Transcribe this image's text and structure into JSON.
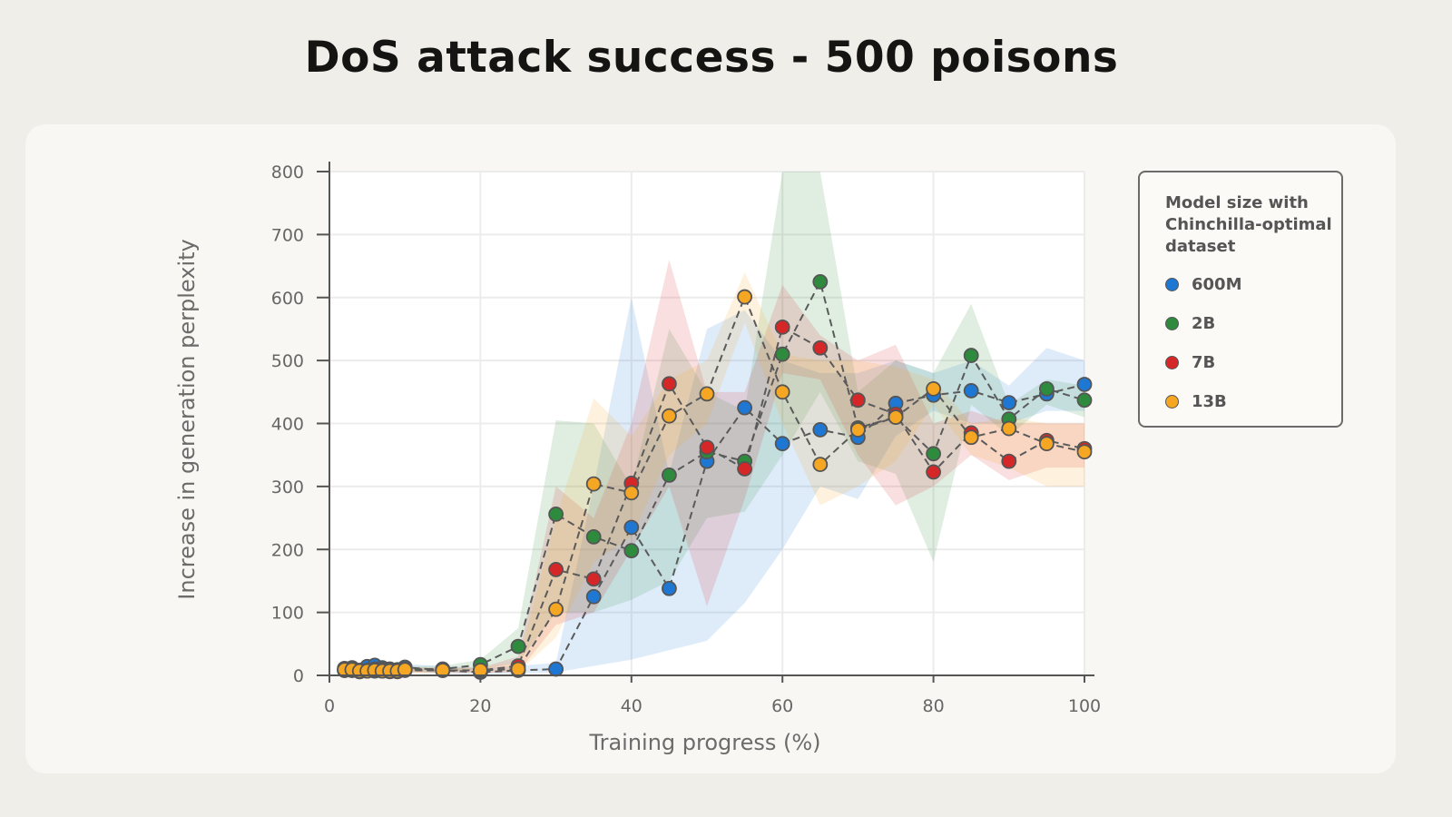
{
  "chart_data": {
    "type": "line",
    "title": "DoS attack success - 500 poisons",
    "xlabel": "Training progress (%)",
    "ylabel": "Increase in generation perplexity",
    "xlim": [
      0,
      100
    ],
    "ylim": [
      0,
      800
    ],
    "xticks": [
      0,
      20,
      40,
      60,
      80,
      100
    ],
    "yticks": [
      0,
      100,
      200,
      300,
      400,
      500,
      600,
      700,
      800
    ],
    "grid": true,
    "legend_title": "Model size with Chinchilla-optimal dataset",
    "legend_placement": "right",
    "x": [
      2,
      3,
      4,
      5,
      6,
      7,
      8,
      9,
      10,
      15,
      20,
      25,
      30,
      35,
      40,
      45,
      50,
      55,
      60,
      65,
      70,
      75,
      80,
      85,
      90,
      95,
      100
    ],
    "series": [
      {
        "name": "600M",
        "color": "#1f77d4",
        "values": [
          8,
          8,
          6,
          14,
          16,
          12,
          10,
          9,
          13,
          8,
          5,
          8,
          10,
          125,
          235,
          138,
          340,
          425,
          368,
          390,
          378,
          432,
          445,
          452,
          433,
          447,
          462
        ],
        "lower": [
          3,
          3,
          2,
          8,
          10,
          7,
          5,
          4,
          8,
          3,
          2,
          3,
          5,
          15,
          25,
          40,
          55,
          115,
          200,
          300,
          280,
          380,
          420,
          400,
          400,
          420,
          420
        ],
        "upper": [
          14,
          14,
          12,
          20,
          22,
          18,
          16,
          15,
          18,
          15,
          12,
          15,
          20,
          300,
          600,
          320,
          550,
          580,
          500,
          480,
          480,
          500,
          480,
          500,
          460,
          520,
          500
        ]
      },
      {
        "name": "2B",
        "color": "#2e8b3e",
        "values": [
          11,
          12,
          8,
          8,
          10,
          9,
          8,
          7,
          10,
          10,
          17,
          46,
          256,
          220,
          198,
          318,
          355,
          340,
          510,
          625,
          393,
          410,
          352,
          508,
          407,
          455,
          437
        ],
        "lower": [
          6,
          7,
          3,
          3,
          5,
          4,
          3,
          2,
          5,
          5,
          10,
          20,
          100,
          100,
          120,
          150,
          250,
          260,
          350,
          450,
          340,
          320,
          180,
          430,
          380,
          430,
          410
        ],
        "upper": [
          16,
          17,
          13,
          13,
          15,
          14,
          13,
          12,
          15,
          15,
          25,
          75,
          405,
          400,
          300,
          550,
          450,
          420,
          800,
          800,
          450,
          500,
          480,
          590,
          430,
          470,
          460
        ]
      },
      {
        "name": "7B",
        "color": "#d62728",
        "values": [
          8,
          8,
          6,
          7,
          7,
          7,
          6,
          6,
          8,
          8,
          8,
          15,
          168,
          153,
          305,
          463,
          362,
          328,
          553,
          520,
          437,
          415,
          323,
          385,
          340,
          373,
          360
        ],
        "lower": [
          4,
          4,
          2,
          3,
          3,
          3,
          2,
          2,
          4,
          4,
          4,
          5,
          80,
          100,
          200,
          300,
          110,
          280,
          480,
          470,
          350,
          270,
          300,
          350,
          310,
          330,
          330
        ],
        "upper": [
          12,
          12,
          10,
          11,
          11,
          11,
          10,
          10,
          12,
          12,
          12,
          30,
          300,
          250,
          400,
          660,
          450,
          450,
          620,
          540,
          500,
          525,
          400,
          420,
          400,
          400,
          400
        ]
      },
      {
        "name": "13B",
        "color": "#f5a623",
        "values": [
          9,
          9,
          7,
          7,
          8,
          7,
          7,
          7,
          9,
          8,
          8,
          10,
          105,
          304,
          290,
          412,
          447,
          601,
          450,
          335,
          390,
          410,
          455,
          378,
          392,
          368,
          355
        ],
        "lower": [
          4,
          4,
          3,
          3,
          4,
          3,
          3,
          3,
          4,
          4,
          4,
          5,
          60,
          180,
          220,
          350,
          400,
          560,
          400,
          270,
          300,
          340,
          430,
          350,
          330,
          300,
          300
        ],
        "upper": [
          14,
          14,
          12,
          12,
          13,
          12,
          12,
          12,
          14,
          12,
          12,
          20,
          250,
          440,
          380,
          470,
          500,
          640,
          510,
          500,
          500,
          490,
          470,
          400,
          410,
          400,
          400
        ]
      }
    ]
  }
}
